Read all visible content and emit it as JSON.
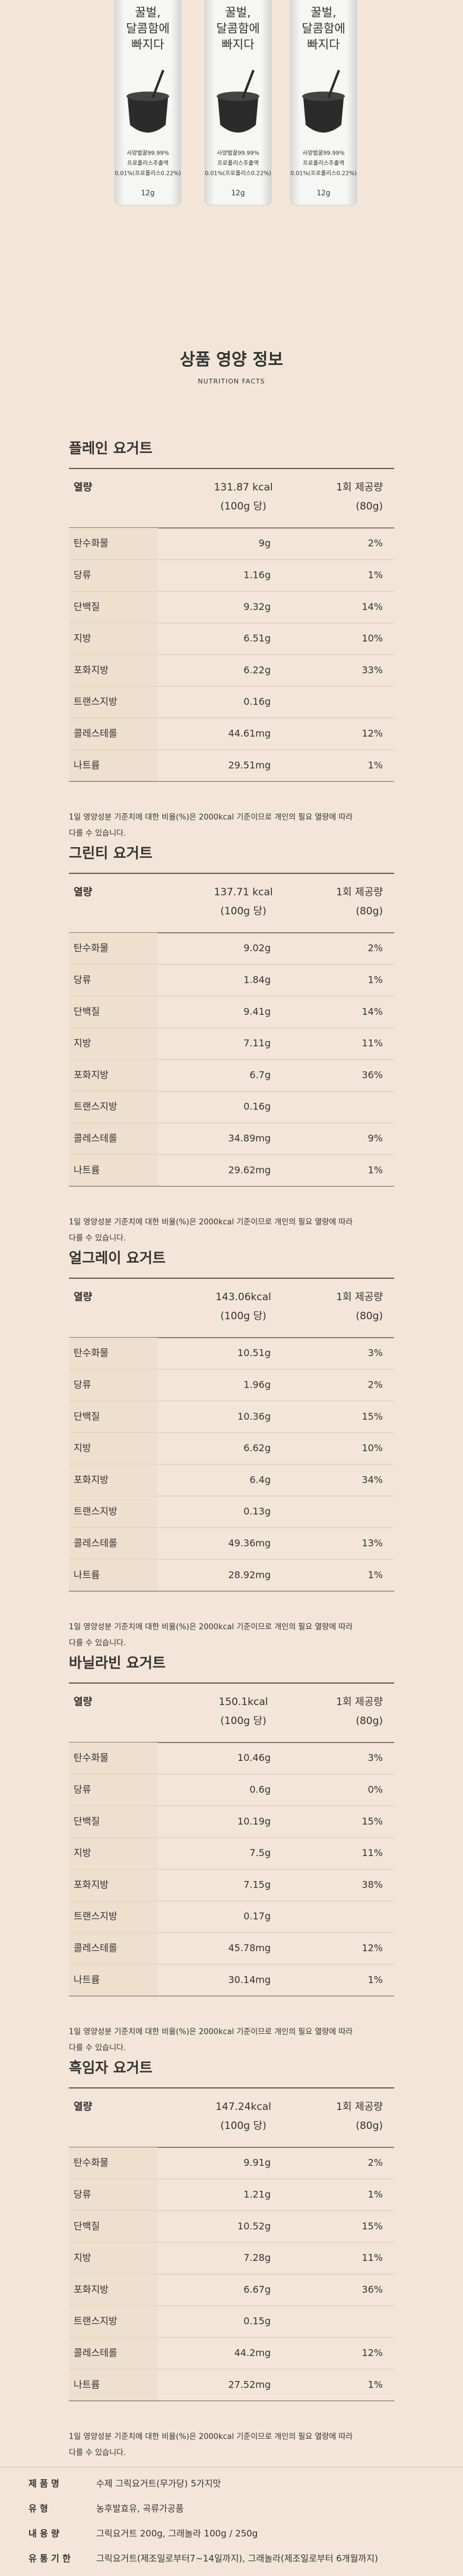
{
  "sticks": {
    "title_lines": [
      "꿀벌,",
      "달콤함에",
      "빠지다"
    ],
    "ingredient_lines": [
      "사양벌꿀99.99%",
      "프로폴리스추출액",
      "0.01%(프로폴리스0.22%)"
    ],
    "weight": "12g"
  },
  "heading": {
    "title": "상품 영양 정보",
    "subtitle": "NUTRITION FACTS"
  },
  "tables": [
    {
      "name": "플레인 요거트",
      "header": {
        "label": "열량",
        "kcal": "131.87 kcal",
        "basis": "(100g 당)",
        "serving": "1회 제공량",
        "serving_size": "(80g)"
      },
      "rows": [
        [
          "탄수화물",
          "9g",
          "2%"
        ],
        [
          "당류",
          "1.16g",
          "1%"
        ],
        [
          "단백질",
          "9.32g",
          "14%"
        ],
        [
          "지방",
          "6.51g",
          "10%"
        ],
        [
          "포화지방",
          "6.22g",
          "33%"
        ],
        [
          "트랜스지방",
          "0.16g"
        ],
        [
          "콜레스테롤",
          "44.61mg",
          "12%"
        ],
        [
          "나트륨",
          "29.51mg",
          "1%"
        ]
      ],
      "note": [
        "1일 영양성분 기준치에 대한 비율(%)은 2000kcal 기준이므로 개인의 필요 열량에 따라",
        "다를 수 있습니다."
      ]
    },
    {
      "name": "그린티 요거트",
      "header": {
        "label": "열량",
        "kcal": "137.71 kcal",
        "basis": "(100g 당)",
        "serving": "1회 제공량",
        "serving_size": "(80g)"
      },
      "rows": [
        [
          "탄수화물",
          "9.02g",
          "2%"
        ],
        [
          "당류",
          "1.84g",
          "1%"
        ],
        [
          "단백질",
          "9.41g",
          "14%"
        ],
        [
          "지방",
          "7.11g",
          "11%"
        ],
        [
          "포화지방",
          "6.7g",
          "36%"
        ],
        [
          "트랜스지방",
          "0.16g"
        ],
        [
          "콜레스테롤",
          "34.89mg",
          "9%"
        ],
        [
          "나트륨",
          "29.62mg",
          "1%"
        ]
      ],
      "note": [
        "1일 영양성분 기준치에 대한 비율(%)은 2000kcal 기준이므로 개인의 필요 열량에 따라",
        "다를 수 있습니다."
      ]
    },
    {
      "name": "얼그레이 요거트",
      "header": {
        "label": "열량",
        "kcal": "143.06kcal",
        "basis": "(100g 당)",
        "serving": "1회 제공량",
        "serving_size": "(80g)"
      },
      "rows": [
        [
          "탄수화물",
          "10.51g",
          "3%"
        ],
        [
          "당류",
          "1.96g",
          "2%"
        ],
        [
          "단백질",
          "10.36g",
          "15%"
        ],
        [
          "지방",
          "6.62g",
          "10%"
        ],
        [
          "포화지방",
          "6.4g",
          "34%"
        ],
        [
          "트랜스지방",
          "0.13g"
        ],
        [
          "콜레스테롤",
          "49.36mg",
          "13%"
        ],
        [
          "나트륨",
          "28.92mg",
          "1%"
        ]
      ],
      "note": [
        "1일 영양성분 기준치에 대한 비율(%)은 2000kcal 기준이므로 개인의 필요 열량에 따라",
        "다를 수 있습니다."
      ]
    },
    {
      "name": "바닐라빈 요거트",
      "header": {
        "label": "열량",
        "kcal": "150.1kcal",
        "basis": "(100g 당)",
        "serving": "1회 제공량",
        "serving_size": "(80g)"
      },
      "rows": [
        [
          "탄수화물",
          "10.46g",
          "3%"
        ],
        [
          "당류",
          "0.6g",
          "0%"
        ],
        [
          "단백질",
          "10.19g",
          "15%"
        ],
        [
          "지방",
          "7.5g",
          "11%"
        ],
        [
          "포화지방",
          "7.15g",
          "38%"
        ],
        [
          "트랜스지방",
          "0.17g"
        ],
        [
          "콜레스테롤",
          "45.78mg",
          "12%"
        ],
        [
          "나트륨",
          "30.14mg",
          "1%"
        ]
      ],
      "note": [
        "1일 영양성분 기준치에 대한 비율(%)은 2000kcal 기준이므로 개인의 필요 열량에 따라",
        "다를 수 있습니다."
      ]
    },
    {
      "name": "흑임자 요거트",
      "header": {
        "label": "열량",
        "kcal": "147.24kcal",
        "basis": "(100g 당)",
        "serving": "1회 제공량",
        "serving_size": "(80g)"
      },
      "rows": [
        [
          "탄수화물",
          "9.91g",
          "2%"
        ],
        [
          "당류",
          "1.21g",
          "1%"
        ],
        [
          "단백질",
          "10.52g",
          "15%"
        ],
        [
          "지방",
          "7.28g",
          "11%"
        ],
        [
          "포화지방",
          "6.67g",
          "36%"
        ],
        [
          "트랜스지방",
          "0.15g"
        ],
        [
          "콜레스테롤",
          "44.2mg",
          "12%"
        ],
        [
          "나트륨",
          "27.52mg",
          "1%"
        ]
      ],
      "note": [
        "1일 영양성분 기준치에 대한 비율(%)은 2000kcal 기준이므로 개인의 필요 열량에 따라",
        "다를 수 있습니다."
      ]
    }
  ],
  "product_info": {
    "rows": [
      [
        "제 품 명",
        "수제 그릭요거트(무가당) 5가지맛"
      ],
      [
        "유 형",
        "농후발효유, 곡류가공품"
      ],
      [
        "내 용 량",
        "그릭요거트 200g, 그래놀라 100g / 250g"
      ],
      [
        "유 통 기 한",
        "그릭요거트(제조일로부터7~14일까지), 그래놀라(제조일로부터 6개월까지)"
      ]
    ]
  }
}
